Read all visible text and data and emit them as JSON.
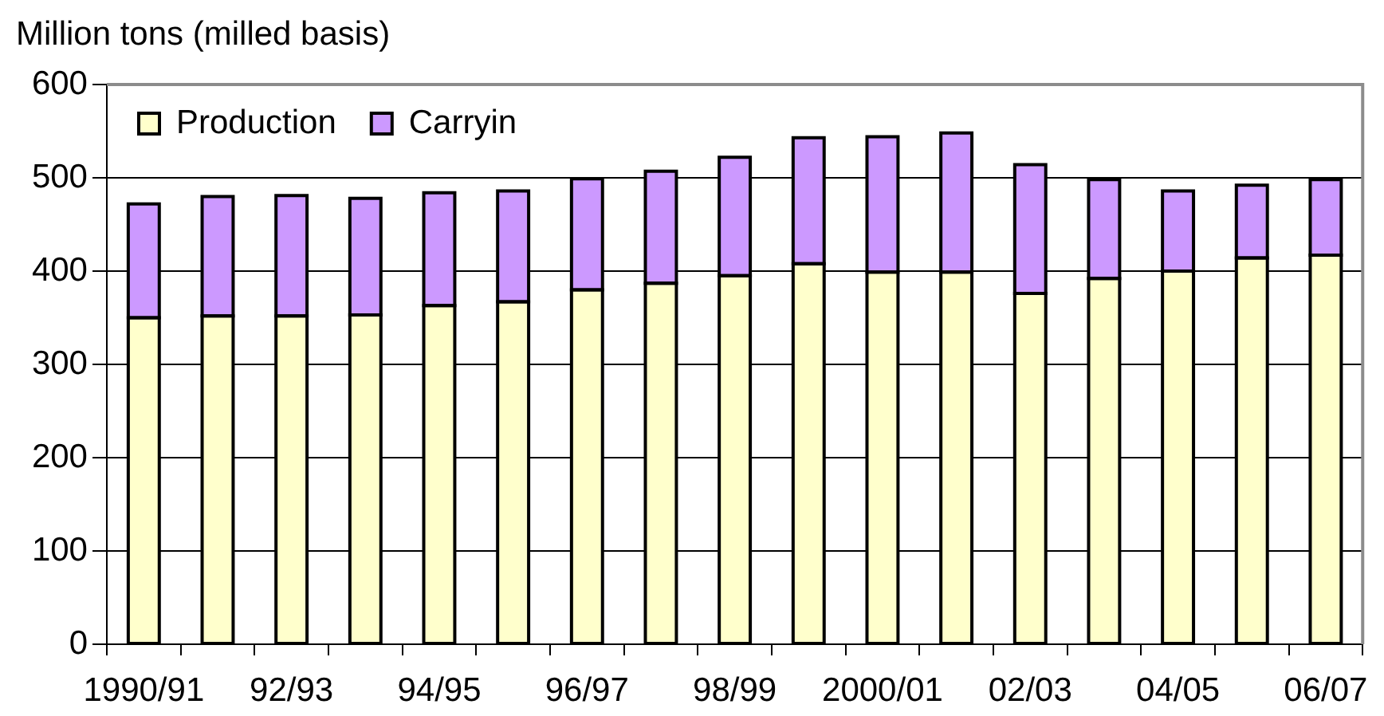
{
  "chart_data": {
    "type": "bar",
    "ylabel": "Million tons (milled basis)",
    "categories": [
      "1990/91",
      null,
      "92/93",
      null,
      "94/95",
      null,
      "96/97",
      null,
      "98/99",
      null,
      "2000/01",
      null,
      "02/03",
      null,
      "04/05",
      null,
      "06/07"
    ],
    "series": [
      {
        "name": "Production",
        "color": "#ffffcc",
        "values": [
          350,
          352,
          352,
          353,
          363,
          367,
          380,
          387,
          395,
          408,
          399,
          399,
          376,
          392,
          400,
          414,
          417
        ]
      },
      {
        "name": "Carryin",
        "color": "#cc99ff",
        "values": [
          122,
          128,
          129,
          125,
          121,
          119,
          119,
          120,
          127,
          135,
          145,
          149,
          138,
          106,
          86,
          78,
          81
        ]
      }
    ],
    "stacked": true,
    "ylim": [
      0,
      600
    ],
    "yticks": [
      0,
      100,
      200,
      300,
      400,
      500,
      600
    ],
    "grid": "y",
    "legend": "top left"
  }
}
